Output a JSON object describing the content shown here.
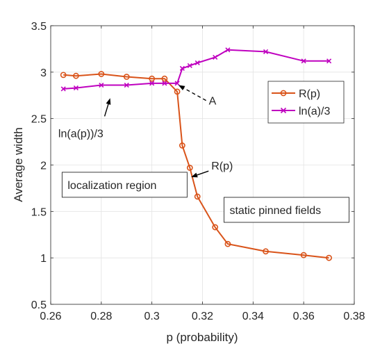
{
  "chart_data": {
    "type": "line",
    "xlabel": "p (probability)",
    "ylabel": "Average width",
    "xlim": [
      0.26,
      0.38
    ],
    "ylim": [
      0.5,
      3.5
    ],
    "xticks": [
      0.26,
      0.28,
      0.3,
      0.32,
      0.34,
      0.36,
      0.38
    ],
    "yticks": [
      0.5,
      1,
      1.5,
      2,
      2.5,
      3,
      3.5
    ],
    "xtick_labels": [
      "0.26",
      "0.28",
      "0.3",
      "0.32",
      "0.34",
      "0.36",
      "0.38"
    ],
    "ytick_labels": [
      "0.5",
      "1",
      "1.5",
      "2",
      "2.5",
      "3",
      "3.5"
    ],
    "grid": true,
    "legend_position": "top-right",
    "series": [
      {
        "name": "R(p)",
        "color": "#D95319",
        "marker": "circle",
        "x": [
          0.265,
          0.27,
          0.28,
          0.29,
          0.3,
          0.305,
          0.31,
          0.312,
          0.315,
          0.318,
          0.325,
          0.33,
          0.345,
          0.36,
          0.37
        ],
        "y": [
          2.97,
          2.96,
          2.98,
          2.95,
          2.93,
          2.93,
          2.79,
          2.21,
          1.97,
          1.66,
          1.33,
          1.15,
          1.07,
          1.03,
          1.0
        ]
      },
      {
        "name": "ln(a)/3",
        "color": "#BF00BF",
        "marker": "x",
        "x": [
          0.265,
          0.27,
          0.28,
          0.29,
          0.3,
          0.305,
          0.31,
          0.312,
          0.315,
          0.318,
          0.325,
          0.33,
          0.345,
          0.36,
          0.37
        ],
        "y": [
          2.82,
          2.83,
          2.86,
          2.86,
          2.88,
          2.88,
          2.88,
          3.04,
          3.07,
          3.1,
          3.16,
          3.24,
          3.22,
          3.12,
          3.12
        ]
      }
    ],
    "annotations": [
      {
        "text": "A",
        "x": 0.3225,
        "y": 2.65,
        "arrow_to": [
          0.3105,
          2.86
        ],
        "dashed": true
      },
      {
        "text": "R(p)",
        "x": 0.3235,
        "y": 1.95,
        "arrow_to": [
          0.3155,
          1.87
        ],
        "dashed": false
      },
      {
        "text": "ln(a(p))/3",
        "x": 0.263,
        "y": 2.3,
        "arrow_to": [
          0.2835,
          2.72
        ],
        "dashed": false
      },
      {
        "text": "localization region",
        "x": 0.2645,
        "y": 1.72,
        "boxed": true
      },
      {
        "text": "static pinned fields",
        "x": 0.3285,
        "y": 1.45,
        "boxed": true
      }
    ]
  }
}
